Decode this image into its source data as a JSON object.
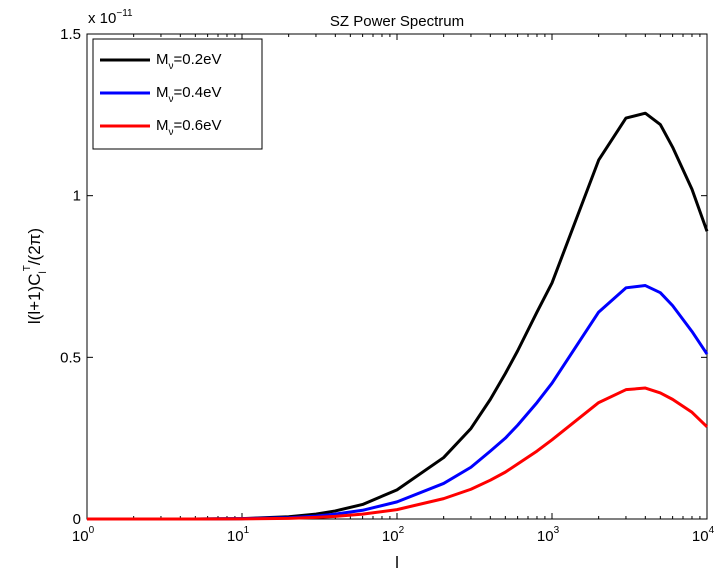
{
  "chart_data": {
    "type": "line",
    "title": "SZ Power Spectrum",
    "xlabel": "l",
    "ylabel": "l(l+1)C_l^T/(2π)",
    "y_multiplier": "x 10^-11",
    "xscale": "log",
    "xlim": [
      1,
      10000
    ],
    "ylim": [
      0,
      1.5
    ],
    "grid": false,
    "legend_position": "top-left",
    "x_ticks": [
      {
        "base": "10",
        "exp": "0"
      },
      {
        "base": "10",
        "exp": "1"
      },
      {
        "base": "10",
        "exp": "2"
      },
      {
        "base": "10",
        "exp": "3"
      },
      {
        "base": "10",
        "exp": "4"
      }
    ],
    "y_ticks": [
      "0",
      "0.5",
      "1",
      "1.5"
    ],
    "x": [
      1,
      2,
      5,
      10,
      20,
      30,
      40,
      60,
      100,
      200,
      300,
      400,
      500,
      600,
      800,
      1000,
      2000,
      3000,
      4000,
      5000,
      6000,
      8000,
      10000
    ],
    "series": [
      {
        "name": "M_ν=0.2eV",
        "label_main": "M",
        "label_sub": "ν",
        "label_rest": "=0.2eV",
        "color": "#000000",
        "values": [
          0,
          0,
          0,
          0.001,
          0.007,
          0.015,
          0.025,
          0.045,
          0.09,
          0.19,
          0.28,
          0.37,
          0.45,
          0.52,
          0.64,
          0.73,
          1.11,
          1.24,
          1.255,
          1.22,
          1.15,
          1.02,
          0.89
        ]
      },
      {
        "name": "M_ν=0.4eV",
        "label_main": "M",
        "label_sub": "ν",
        "label_rest": "=0.4eV",
        "color": "#0000ff",
        "values": [
          0,
          0,
          0,
          0.001,
          0.004,
          0.009,
          0.015,
          0.027,
          0.053,
          0.11,
          0.16,
          0.21,
          0.25,
          0.29,
          0.36,
          0.42,
          0.64,
          0.715,
          0.722,
          0.7,
          0.66,
          0.58,
          0.51
        ]
      },
      {
        "name": "M_ν=0.6eV",
        "label_main": "M",
        "label_sub": "ν",
        "label_rest": "=0.6eV",
        "color": "#ff0000",
        "values": [
          0,
          0,
          0,
          0.0005,
          0.002,
          0.005,
          0.008,
          0.015,
          0.029,
          0.063,
          0.092,
          0.12,
          0.145,
          0.17,
          0.21,
          0.245,
          0.36,
          0.4,
          0.405,
          0.39,
          0.37,
          0.33,
          0.285
        ]
      }
    ]
  }
}
